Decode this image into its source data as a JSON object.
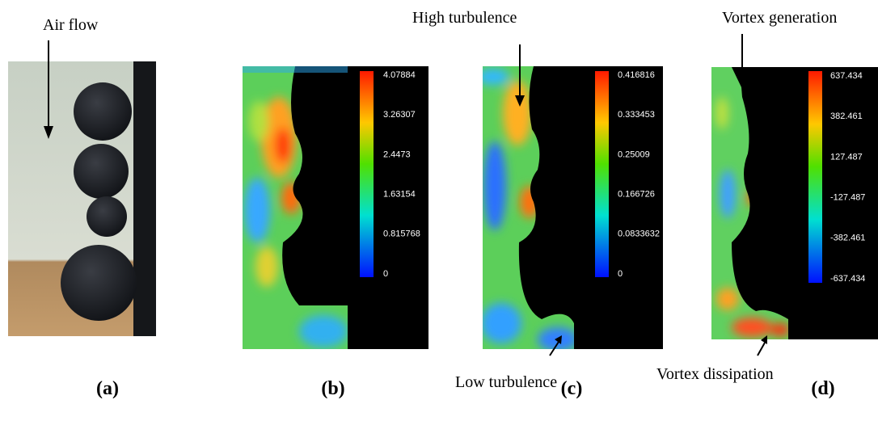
{
  "annotations": {
    "air_flow": "Air flow",
    "high_turbulence": "High turbulence",
    "vortex_generation": "Vortex generation",
    "low_turbulence": "Low turbulence",
    "vortex_dissipation": "Vortex dissipation"
  },
  "panels": [
    {
      "label": "(a)"
    },
    {
      "label": "(b)",
      "colorbar": [
        "4.07884",
        "3.26307",
        "2.4473",
        "1.63154",
        "0.815768",
        "0"
      ]
    },
    {
      "label": "(c)",
      "colorbar": [
        "0.416816",
        "0.333453",
        "0.25009",
        "0.166726",
        "0.0833632",
        "0"
      ]
    },
    {
      "label": "(d)",
      "colorbar": [
        "637.434",
        "382.461",
        "127.487",
        "-127.487",
        "-382.461",
        "-637.434"
      ]
    }
  ]
}
